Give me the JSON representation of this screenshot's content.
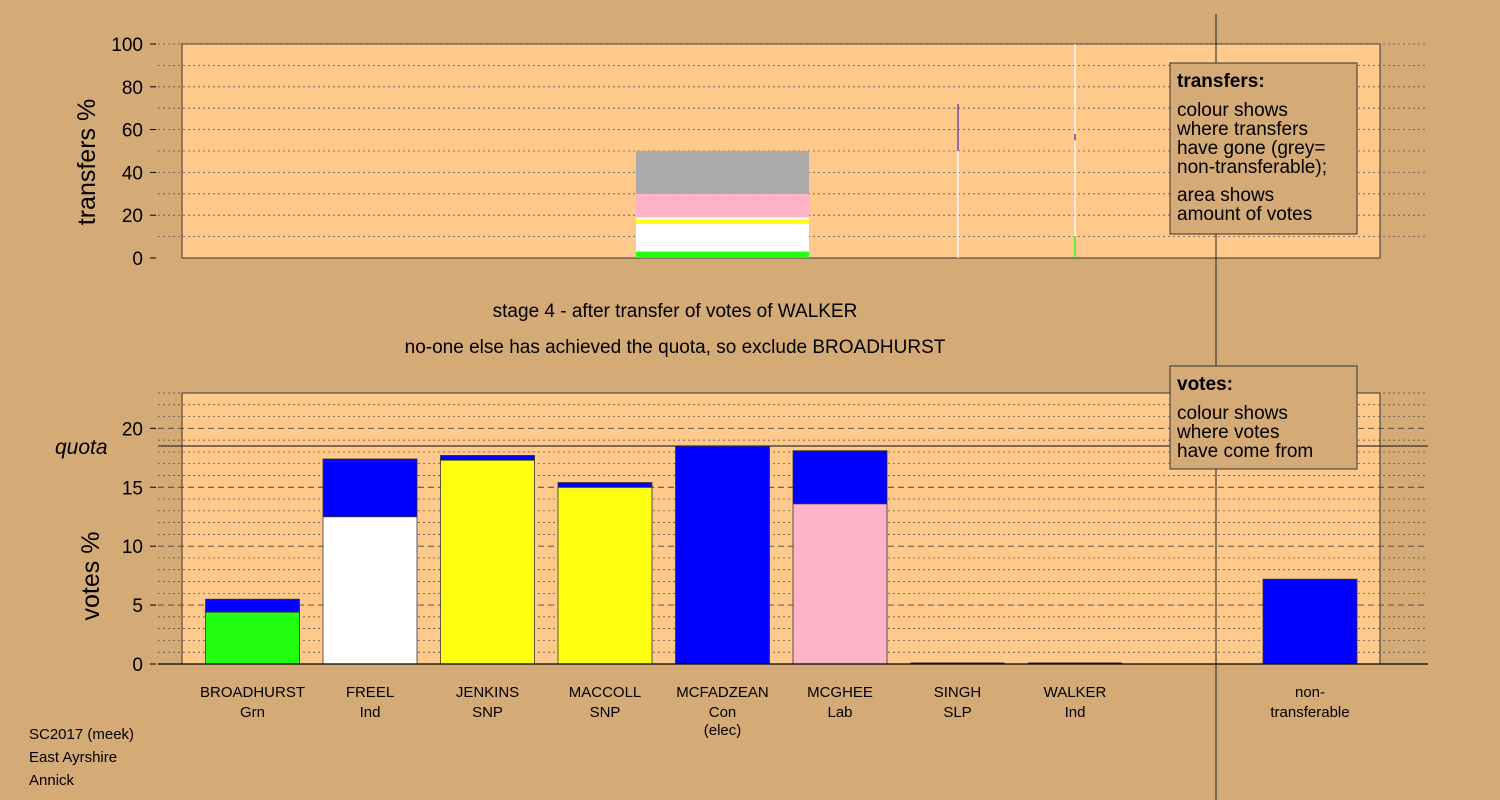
{
  "chart_data": [
    {
      "type": "bar",
      "name": "transfers",
      "ylabel": "transfers %",
      "ylim": [
        0,
        100
      ],
      "yticks": [
        "0",
        "20",
        "40",
        "60",
        "80",
        "100"
      ],
      "transfer_bar": {
        "segments": [
          {
            "from": 0,
            "to": 3,
            "color": "#22ff11"
          },
          {
            "from": 3,
            "to": 16,
            "color": "#ffffff"
          },
          {
            "from": 16,
            "to": 18,
            "color": "#ffff11"
          },
          {
            "from": 18,
            "to": 19,
            "color": "#ffffff"
          },
          {
            "from": 19,
            "to": 30,
            "color": "#ffb3c6"
          },
          {
            "from": 30,
            "to": 50,
            "color": "#aaaaaa"
          }
        ]
      },
      "thin_marks": [
        {
          "position": 5.5,
          "segments": [
            {
              "from": 0,
              "to": 50,
              "color": "#ffffff"
            },
            {
              "from": 50,
              "to": 72,
              "color": "#6a3fb0"
            }
          ]
        },
        {
          "position": 6.5,
          "segments": [
            {
              "from": 0,
              "to": 10,
              "color": "#22ff11"
            },
            {
              "from": 10,
              "to": 55,
              "color": "#ffffff"
            },
            {
              "from": 55,
              "to": 58,
              "color": "#6a3fb0"
            },
            {
              "from": 58,
              "to": 100,
              "color": "#ffffff"
            }
          ]
        }
      ],
      "legend": {
        "title": "transfers:",
        "lines1": [
          "colour shows",
          "where transfers",
          "have gone (grey=",
          "non-transferable);"
        ],
        "lines2": [
          "area shows",
          "amount of votes"
        ]
      }
    },
    {
      "type": "bar",
      "name": "votes",
      "ylabel": "votes %",
      "ylim": [
        0,
        23
      ],
      "yticks": [
        "0",
        "5",
        "10",
        "15",
        "20"
      ],
      "quota": 18.5,
      "quota_label": "quota",
      "candidates": [
        {
          "name": "BROADHURST",
          "party": "Grn",
          "extra": "",
          "segments": [
            {
              "value": 4.4,
              "color": "#22ff11"
            },
            {
              "value": 1.1,
              "color": "#0000ff"
            }
          ]
        },
        {
          "name": "FREEL",
          "party": "Ind",
          "extra": "",
          "segments": [
            {
              "value": 12.5,
              "color": "#ffffff"
            },
            {
              "value": 4.7,
              "color": "#0000ff"
            },
            {
              "value": 0.2,
              "color": "#0000ff"
            }
          ]
        },
        {
          "name": "JENKINS",
          "party": "SNP",
          "extra": "",
          "segments": [
            {
              "value": 17.3,
              "color": "#ffff11"
            },
            {
              "value": 0.4,
              "color": "#0000ff"
            }
          ]
        },
        {
          "name": "MACCOLL",
          "party": "SNP",
          "extra": "",
          "segments": [
            {
              "value": 15.0,
              "color": "#ffff11"
            },
            {
              "value": 0.4,
              "color": "#0000ff"
            }
          ]
        },
        {
          "name": "MCFADZEAN",
          "party": "Con",
          "extra": "(elec)",
          "segments": [
            {
              "value": 18.5,
              "color": "#0000ff"
            }
          ]
        },
        {
          "name": "MCGHEE",
          "party": "Lab",
          "extra": "",
          "segments": [
            {
              "value": 13.6,
              "color": "#ffb3c6"
            },
            {
              "value": 4.5,
              "color": "#0000ff"
            }
          ]
        },
        {
          "name": "SINGH",
          "party": "SLP",
          "extra": "",
          "segments": []
        },
        {
          "name": "WALKER",
          "party": "Ind",
          "extra": "",
          "segments": []
        }
      ],
      "nontransferable": {
        "line1": "non-",
        "line2": "transferable",
        "value": 7.2,
        "color": "#0000ff"
      },
      "legend": {
        "title": "votes:",
        "lines": [
          "colour shows",
          "where votes",
          "have come from"
        ]
      }
    }
  ],
  "stage_line1": "stage 4 - after transfer of votes of WALKER",
  "stage_line2": "no-one else has achieved the quota, so exclude BROADHURST",
  "footer": [
    "SC2017 (meek)",
    "East Ayrshire",
    "Annick"
  ]
}
